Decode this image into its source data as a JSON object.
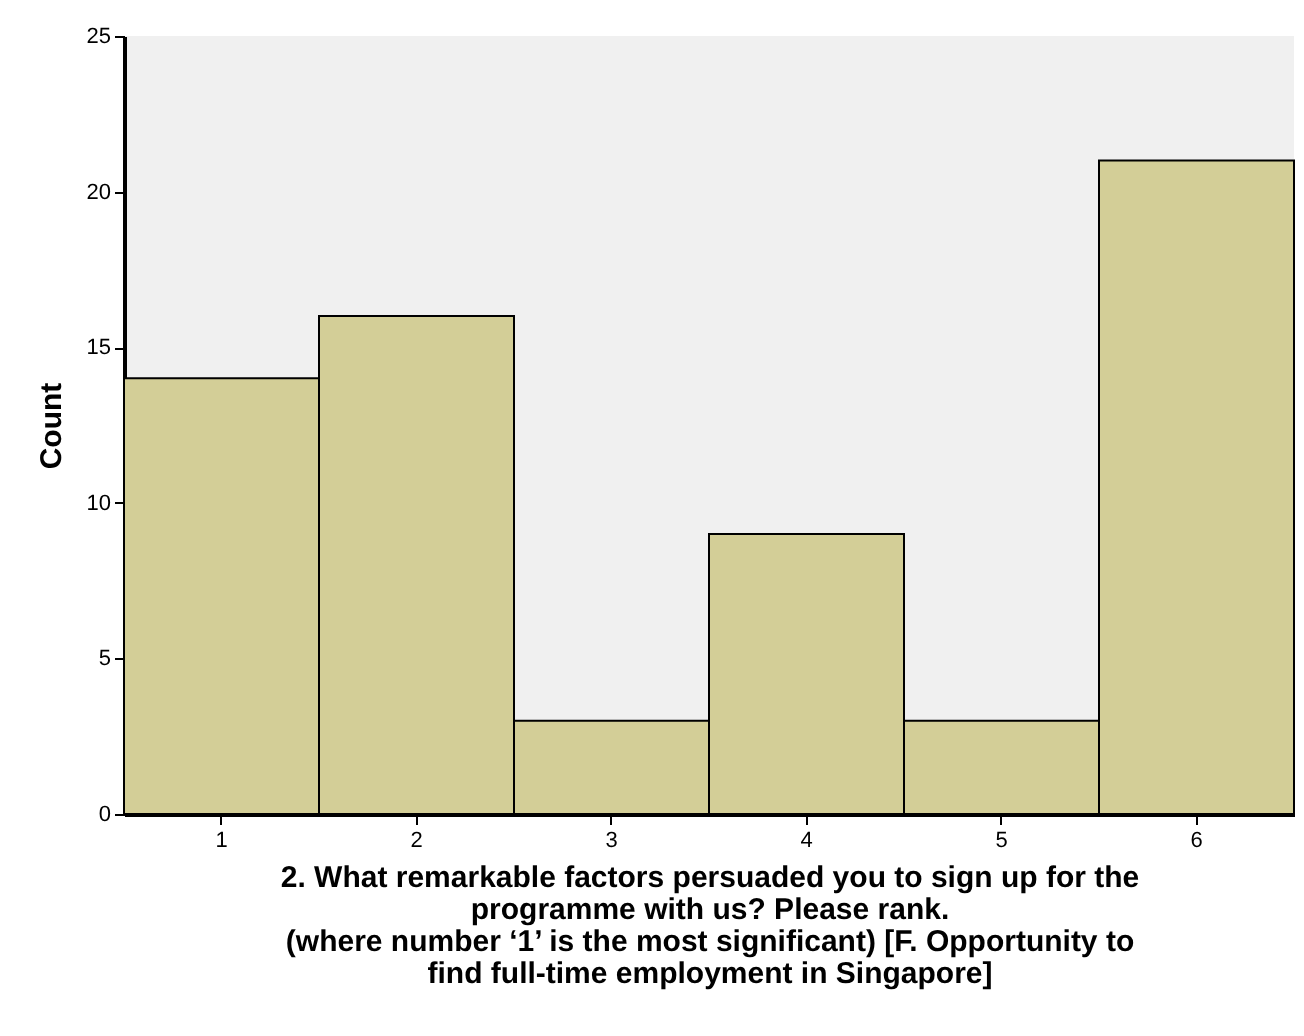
{
  "chart_data": {
    "type": "bar",
    "xlabel": "2. What remarkable factors persuaded you to sign up for the\nprogramme with us? Please rank.\n(where number ‘1’ is the most significant) [F. Opportunity to\nfind full-time employment in Singapore]",
    "ylabel": "Count",
    "categories": [
      "1",
      "2",
      "3",
      "4",
      "5",
      "6"
    ],
    "values": [
      14,
      16,
      3,
      9,
      3,
      21
    ],
    "color": "#d3ce97",
    "ylim": [
      0,
      25
    ],
    "yticks": [
      0,
      5,
      10,
      15,
      20,
      25
    ],
    "grid": false
  }
}
